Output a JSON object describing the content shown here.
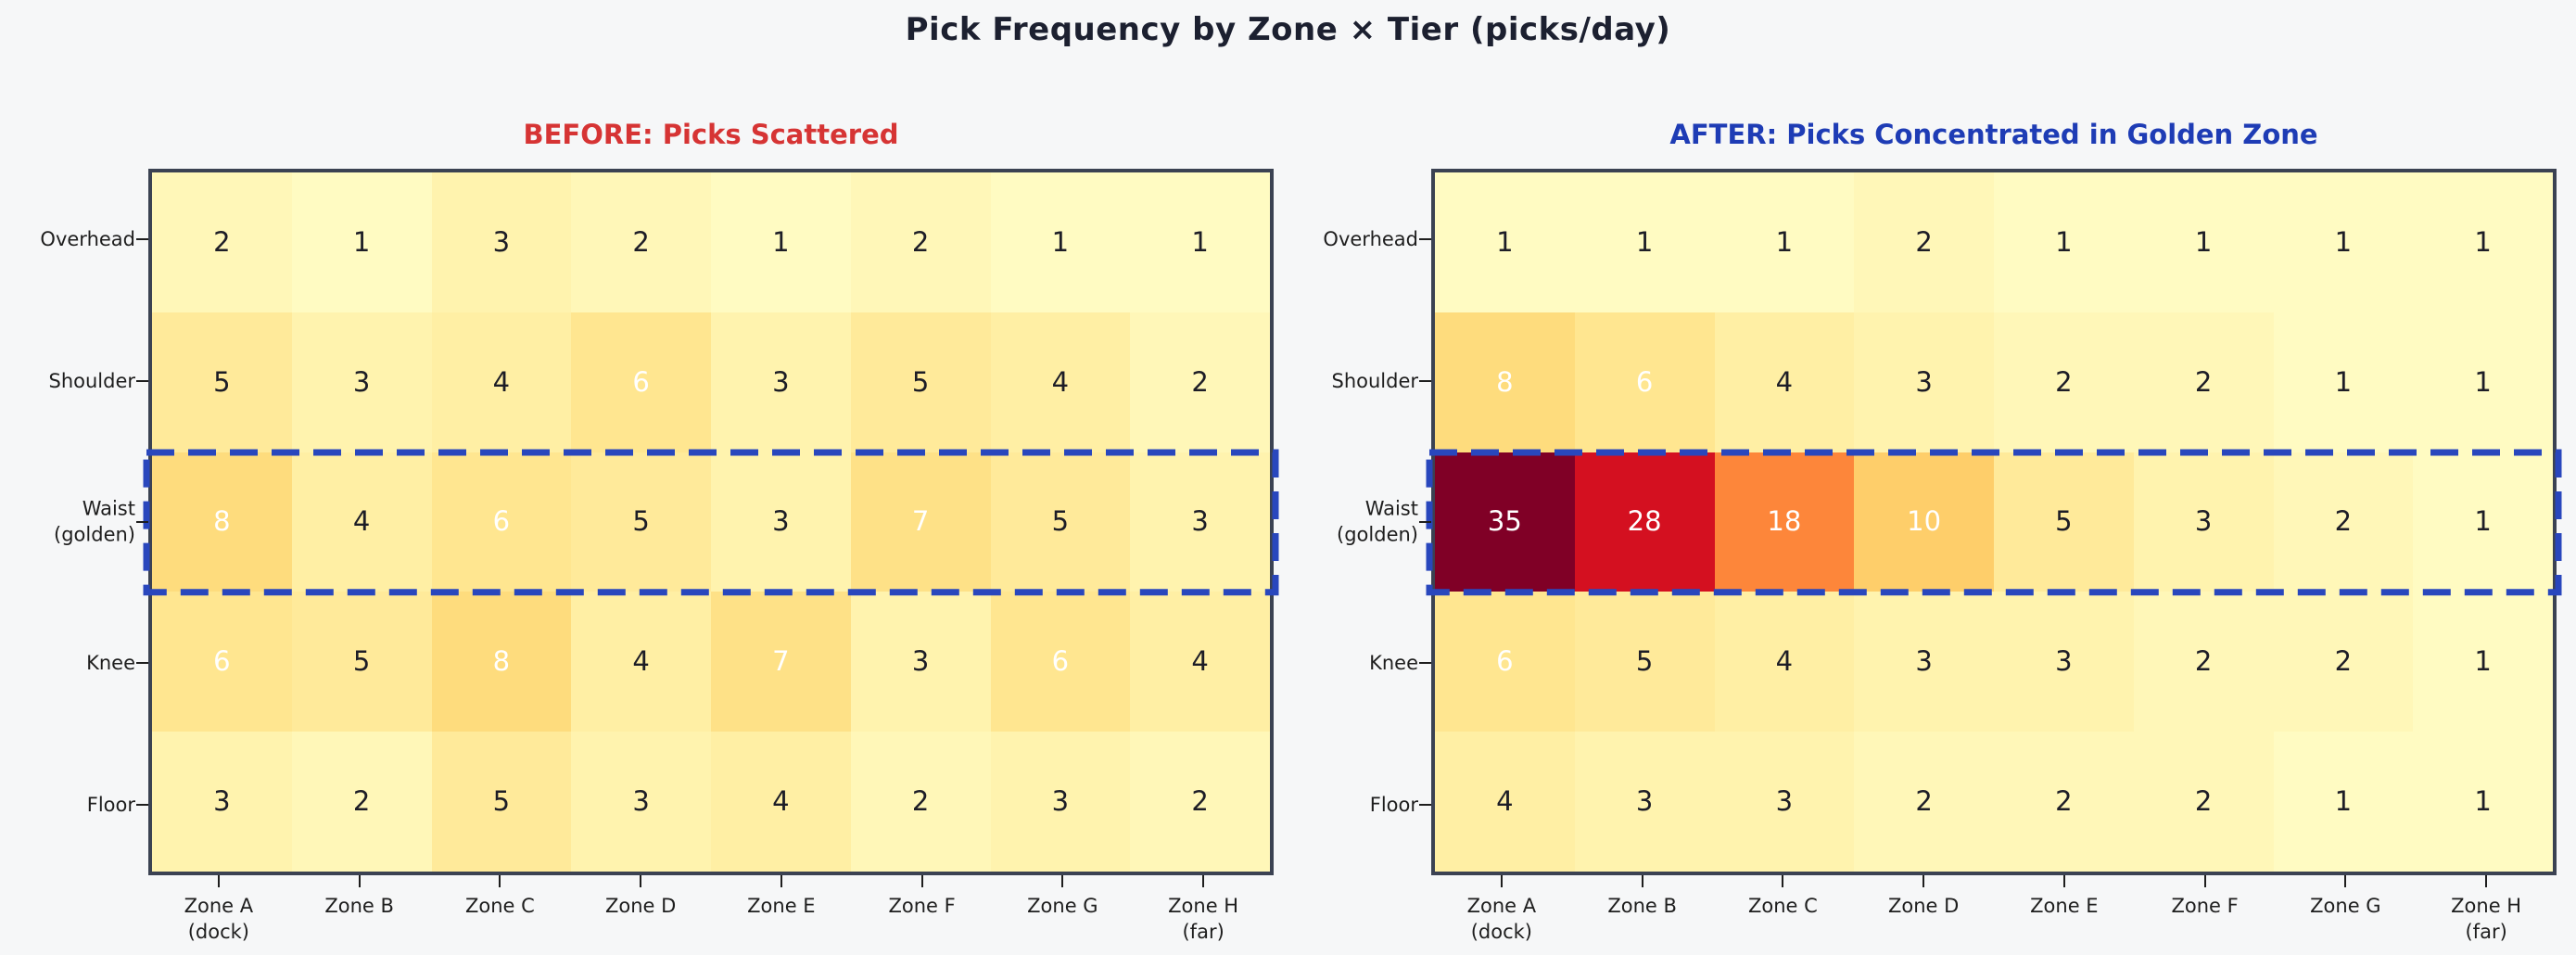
{
  "figure": {
    "suptitle": "Pick Frequency by Zone × Tier (picks/day)"
  },
  "palette": {
    "background": "#f6f7f8",
    "spine": "#3b4252",
    "suptitle_text": "#1c2030",
    "axis_text": "#1e1e1e",
    "before_title": "#d63434",
    "after_title": "#1e3cb5",
    "golden_zone_border": "#2947bd",
    "cell_text_dark": "#1d1d26",
    "cell_text_light": "#ffffff",
    "white_text_min": 6
  },
  "value_colors": {
    "1": "#fffbc2",
    "2": "#fff7b8",
    "3": "#fff3ae",
    "4": "#ffefa4",
    "5": "#ffea9a",
    "6": "#ffe690",
    "7": "#fee187",
    "8": "#fedc7d",
    "10": "#fece6a",
    "18": "#fd863a",
    "28": "#d41020",
    "35": "#800026"
  },
  "axis": {
    "row_labels": [
      "Overhead",
      "Shoulder",
      "Waist\n(golden)",
      "Knee",
      "Floor"
    ],
    "col_labels": [
      "Zone A\n(dock)",
      "Zone B",
      "Zone C",
      "Zone D",
      "Zone E",
      "Zone F",
      "Zone G",
      "Zone H\n(far)"
    ]
  },
  "chart_data": [
    {
      "type": "heatmap",
      "title": "BEFORE: Picks Scattered",
      "rows": [
        "Overhead",
        "Shoulder",
        "Waist (golden)",
        "Knee",
        "Floor"
      ],
      "columns": [
        "Zone A (dock)",
        "Zone B",
        "Zone C",
        "Zone D",
        "Zone E",
        "Zone F",
        "Zone G",
        "Zone H (far)"
      ],
      "values": [
        [
          2,
          1,
          3,
          2,
          1,
          2,
          1,
          1
        ],
        [
          5,
          3,
          4,
          6,
          3,
          5,
          4,
          2
        ],
        [
          8,
          4,
          6,
          5,
          3,
          7,
          5,
          3
        ],
        [
          6,
          5,
          8,
          4,
          7,
          3,
          6,
          4
        ],
        [
          3,
          2,
          5,
          3,
          4,
          2,
          3,
          2
        ]
      ],
      "colormap": "YlOrRd",
      "vmin": 0,
      "vmax": 35,
      "annotated": true,
      "legend": "none",
      "highlight_row": "Waist (golden)"
    },
    {
      "type": "heatmap",
      "title": "AFTER: Picks Concentrated in Golden Zone",
      "rows": [
        "Overhead",
        "Shoulder",
        "Waist (golden)",
        "Knee",
        "Floor"
      ],
      "columns": [
        "Zone A (dock)",
        "Zone B",
        "Zone C",
        "Zone D",
        "Zone E",
        "Zone F",
        "Zone G",
        "Zone H (far)"
      ],
      "values": [
        [
          1,
          1,
          1,
          2,
          1,
          1,
          1,
          1
        ],
        [
          8,
          6,
          4,
          3,
          2,
          2,
          1,
          1
        ],
        [
          35,
          28,
          18,
          10,
          5,
          3,
          2,
          1
        ],
        [
          6,
          5,
          4,
          3,
          3,
          2,
          2,
          1
        ],
        [
          4,
          3,
          3,
          2,
          2,
          2,
          1,
          1
        ]
      ],
      "colormap": "YlOrRd",
      "vmin": 0,
      "vmax": 35,
      "annotated": true,
      "legend": "none",
      "highlight_row": "Waist (golden)"
    }
  ]
}
